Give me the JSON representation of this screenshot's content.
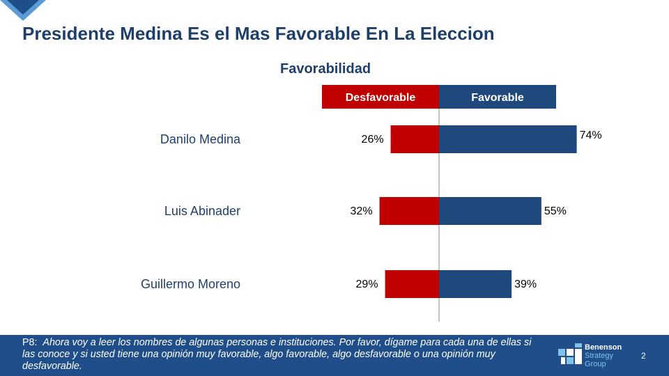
{
  "slide": {
    "title": "Presidente Medina Es el Mas Favorable En La Eleccion",
    "page_number": "2"
  },
  "footer": {
    "question_label": "P8:",
    "question_text": "Ahora voy a leer los nombres de algunas personas e instituciones. Por favor, dígame para cada una de ellas si las conoce y si usted tiene una opinión muy favorable, algo favorable, algo desfavorable o una opinión muy desfavorable."
  },
  "logo": {
    "line1": "Benenson",
    "line2": "Strategy",
    "line3": "Group"
  },
  "colors": {
    "unfavorable": "#c00000",
    "favorable": "#1f497d",
    "title": "#1f3f6b",
    "footer": "#1f4e8a"
  },
  "chart_data": {
    "type": "bar",
    "orientation": "horizontal",
    "layout": "diverging",
    "title": "Favorabilidad",
    "categories": [
      "Danilo Medina",
      "Luis Abinader",
      "Guillermo Moreno"
    ],
    "series": [
      {
        "name": "Desfavorable",
        "values": [
          26,
          32,
          29
        ],
        "labels": [
          "26%",
          "32%",
          "29%"
        ],
        "color": "#c00000",
        "side": "left"
      },
      {
        "name": "Favorable",
        "values": [
          74,
          55,
          39
        ],
        "labels": [
          "74%",
          "55%",
          "39%"
        ],
        "color": "#1f497d",
        "side": "right"
      }
    ],
    "legend": "top",
    "grid": false
  }
}
